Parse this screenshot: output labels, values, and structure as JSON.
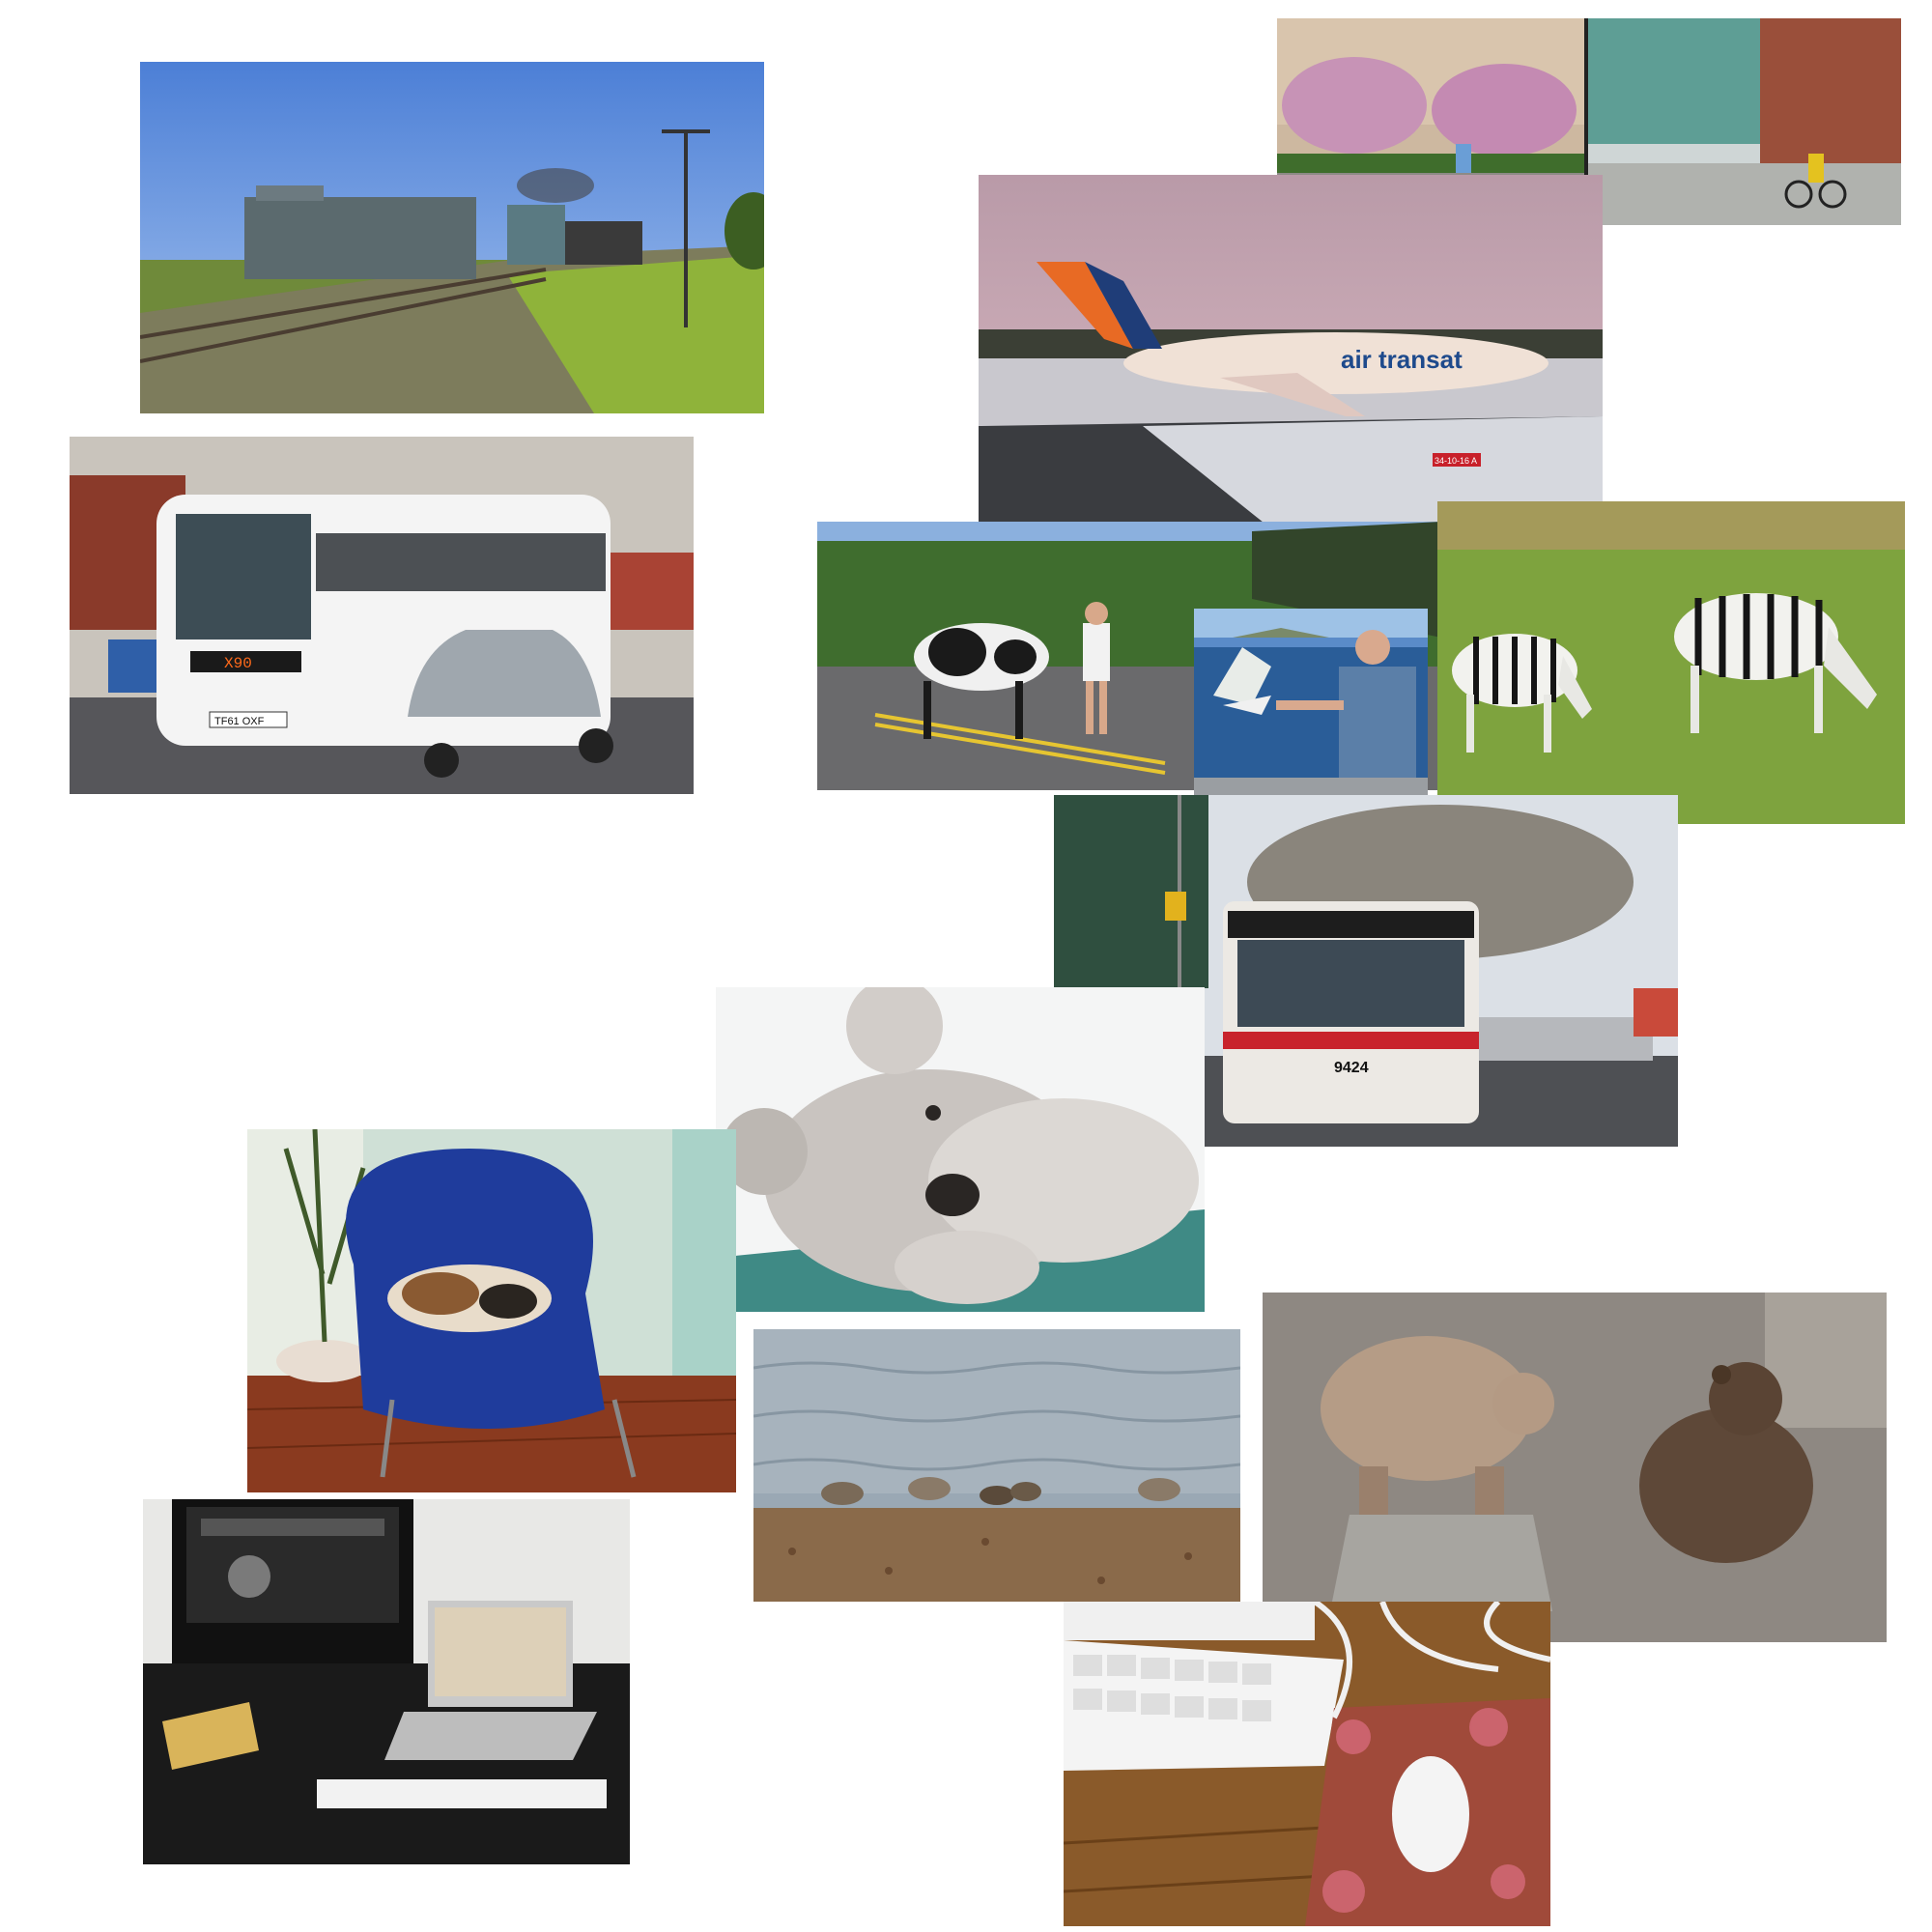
{
  "collage": {
    "photos": [
      {
        "id": "train",
        "subject": "freight train on tracks"
      },
      {
        "id": "cyclist",
        "subject": "cyclist two-panel"
      },
      {
        "id": "airplane",
        "subject": "air transat airplane on runway"
      },
      {
        "id": "coach",
        "subject": "white airline coach bus"
      },
      {
        "id": "cow",
        "subject": "woman leading cow across street"
      },
      {
        "id": "gull",
        "subject": "man feeding gull"
      },
      {
        "id": "zebras",
        "subject": "two zebras grazing"
      },
      {
        "id": "trolleybus",
        "subject": "trolley bus 9424"
      },
      {
        "id": "teddy",
        "subject": "white teddy bear"
      },
      {
        "id": "cat",
        "subject": "cat sleeping on blue chair"
      },
      {
        "id": "birds",
        "subject": "shorebirds on pebble beach"
      },
      {
        "id": "bears",
        "subject": "two brown bears"
      },
      {
        "id": "desk",
        "subject": "tv and laptop desk"
      },
      {
        "id": "keyboard",
        "subject": "keyboard and mouse on mousepad"
      }
    ],
    "texts": {
      "airline_livery": "air transat",
      "runway_sign": "34-10-16 A",
      "trolleybus_number": "9424",
      "coach_plate": "TF61 OXF",
      "coach_route": "X90"
    }
  }
}
